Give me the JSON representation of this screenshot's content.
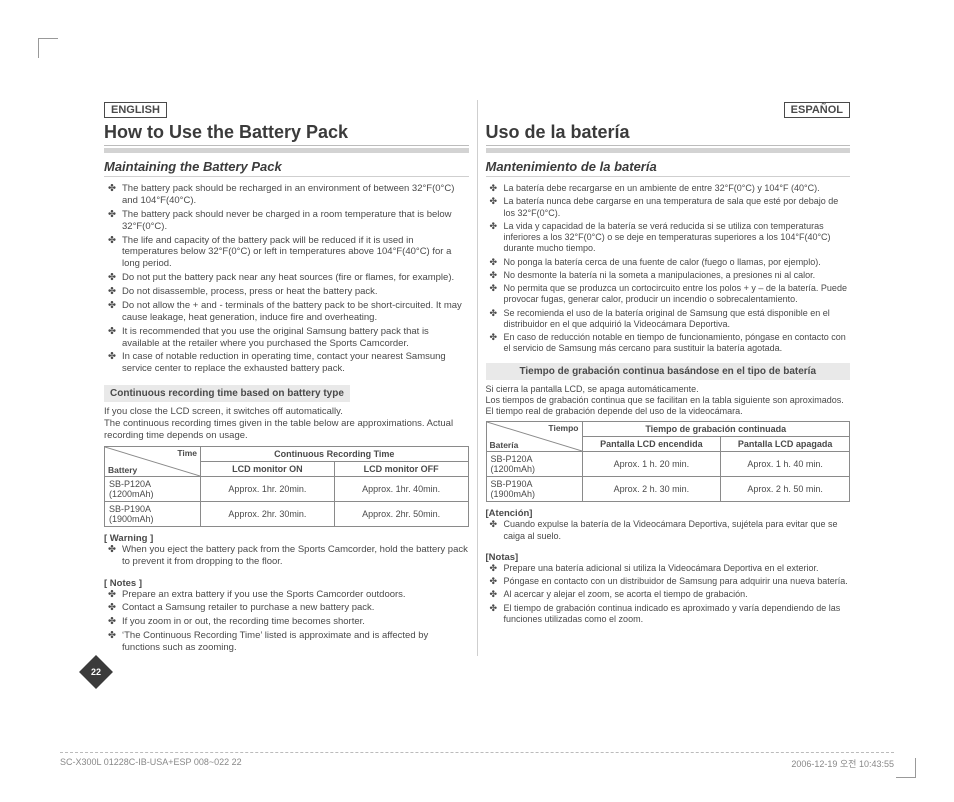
{
  "langs": {
    "left": "ENGLISH",
    "right": "ESPAÑOL"
  },
  "left": {
    "title": "How to Use the Battery Pack",
    "section": "Maintaining the Battery Pack",
    "bullets": [
      "The battery pack should be recharged in an environment of between 32°F(0°C) and 104°F(40°C).",
      "The battery pack should never be charged in a room temperature that is below 32°F(0°C).",
      "The life and capacity of the battery pack will be reduced if it is used in temperatures below 32°F(0°C) or left in temperatures above 104°F(40°C) for a long period.",
      "Do not put the battery pack near any heat sources (fire or flames, for example).",
      "Do not disassemble, process, press or heat the battery pack.",
      "Do not allow the + and - terminals of the battery pack to be short-circuited. It may cause leakage, heat generation, induce fire and overheating.",
      "It is recommended that you use the original Samsung battery pack that is available at the retailer where you purchased the Sports Camcorder.",
      "In case of notable reduction in operating time, contact your nearest Samsung service center to replace the exhausted battery pack."
    ],
    "box_heading": "Continuous recording time based on battery type",
    "intro": "If you close the LCD screen, it switches off automatically.\nThe continuous recording times given in the table below are approximations. Actual recording time depends on usage.",
    "table": {
      "diag_top": "Time",
      "diag_bottom": "Battery",
      "header_span": "Continuous Recording Time",
      "col1": "LCD monitor ON",
      "col2": "LCD monitor OFF",
      "rows": [
        {
          "b": "SB-P120A (1200mAh)",
          "on": "Approx. 1hr. 20min.",
          "off": "Approx. 1hr. 40min."
        },
        {
          "b": "SB-P190A (1900mAh)",
          "on": "Approx. 2hr. 30min.",
          "off": "Approx. 2hr. 50min."
        }
      ]
    },
    "warning_label": "[ Warning ]",
    "warning_items": [
      "When you eject the battery pack from the Sports Camcorder, hold the battery pack to prevent it from dropping to the floor."
    ],
    "notes_label": "[ Notes ]",
    "notes_items": [
      "Prepare an extra battery if you use the Sports Camcorder outdoors.",
      "Contact a Samsung retailer to purchase a new battery pack.",
      "If you zoom in or out, the recording time becomes shorter.",
      "‘The Continuous Recording Time’ listed is approximate and is affected by functions such as zooming."
    ]
  },
  "right": {
    "title": "Uso de la batería",
    "section": "Mantenimiento de la batería",
    "bullets": [
      "La batería debe recargarse en un ambiente de entre 32°F(0°C) y 104°F (40°C).",
      "La batería nunca debe cargarse en una temperatura de sala que esté por debajo de los 32°F(0°C).",
      "La vida y capacidad de la batería se verá reducida si se utiliza con temperaturas inferiores a los 32°F(0°C) o se deje en temperaturas superiores a los 104°F(40°C) durante mucho tiempo.",
      "No ponga la batería cerca de una fuente de calor (fuego o llamas, por ejemplo).",
      "No desmonte la batería ni la someta a manipulaciones, a presiones ni al calor.",
      "No permita que se produzca un cortocircuito entre los polos + y – de la batería. Puede provocar fugas, generar calor, producir un incendio o sobrecalentamiento.",
      "Se recomienda el uso de la batería original de Samsung que está disponible en el distribuidor en el que adquirió la Videocámara Deportiva.",
      "En caso de reducción notable en tiempo de funcionamiento, póngase en contacto con el servicio de Samsung más cercano para sustituir la batería agotada."
    ],
    "box_heading": "Tiempo de grabación continua basándose en el tipo de batería",
    "intro": "Si cierra la pantalla LCD, se apaga automáticamente.\nLos tiempos de grabación continua que se facilitan en la tabla siguiente son aproximados. El tiempo real de grabación depende del uso de la videocámara.",
    "table": {
      "diag_top": "Tiempo",
      "diag_bottom": "Batería",
      "header_span": "Tiempo de grabación continuada",
      "col1": "Pantalla LCD encendida",
      "col2": "Pantalla LCD apagada",
      "rows": [
        {
          "b": "SB-P120A (1200mAh)",
          "on": "Aprox. 1 h. 20 min.",
          "off": "Aprox. 1 h. 40 min."
        },
        {
          "b": "SB-P190A (1900mAh)",
          "on": "Aprox. 2 h. 30 min.",
          "off": "Aprox. 2 h. 50 min."
        }
      ]
    },
    "warning_label": "[Atención]",
    "warning_items": [
      "Cuando expulse la batería de la Videocámara Deportiva, sujétela para evitar que se caiga al suelo."
    ],
    "notes_label": "[Notas]",
    "notes_items": [
      "Prepare una batería adicional si utiliza la Videocámara Deportiva en el exterior.",
      "Póngase en contacto con un distribuidor de Samsung para adquirir una nueva batería.",
      "Al acercar y alejar el zoom, se acorta el tiempo de grabación.",
      "El tiempo de grabación continua indicado es aproximado y varía dependiendo de las funciones utilizadas como el zoom."
    ]
  },
  "page_number": "22",
  "footer_left": "SC-X300L 01228C-IB-USA+ESP 008~022   22",
  "footer_right": "2006-12-19   오전 10:43:55"
}
